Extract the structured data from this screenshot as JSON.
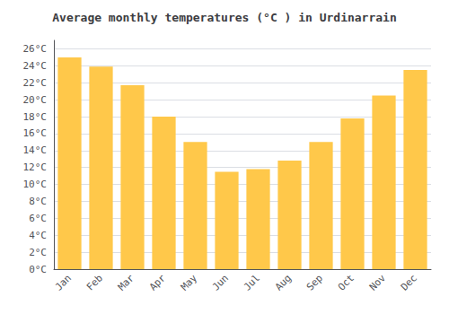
{
  "chart_data": {
    "type": "bar",
    "title": "Average monthly temperatures (°C ) in Urdinarrain",
    "categories": [
      "Jan",
      "Feb",
      "Mar",
      "Apr",
      "May",
      "Jun",
      "Jul",
      "Aug",
      "Sep",
      "Oct",
      "Nov",
      "Dec"
    ],
    "values": [
      25.0,
      23.9,
      21.7,
      18.0,
      15.0,
      11.5,
      11.8,
      12.8,
      15.0,
      17.8,
      20.5,
      23.5
    ],
    "color": "#FFC84A",
    "ylim": [
      0,
      27
    ],
    "yticks": [
      {
        "value": 0,
        "label": "0°C"
      },
      {
        "value": 2,
        "label": "2°C"
      },
      {
        "value": 4,
        "label": "4°C"
      },
      {
        "value": 6,
        "label": "6°C"
      },
      {
        "value": 8,
        "label": "8°C"
      },
      {
        "value": 10,
        "label": "10°C"
      },
      {
        "value": 12,
        "label": "12°C"
      },
      {
        "value": 14,
        "label": "14°C"
      },
      {
        "value": 16,
        "label": "16°C"
      },
      {
        "value": 18,
        "label": "18°C"
      },
      {
        "value": 20,
        "label": "20°C"
      },
      {
        "value": 22,
        "label": "22°C"
      },
      {
        "value": 24,
        "label": "24°C"
      },
      {
        "value": 26,
        "label": "26°C"
      }
    ],
    "grid": true
  }
}
